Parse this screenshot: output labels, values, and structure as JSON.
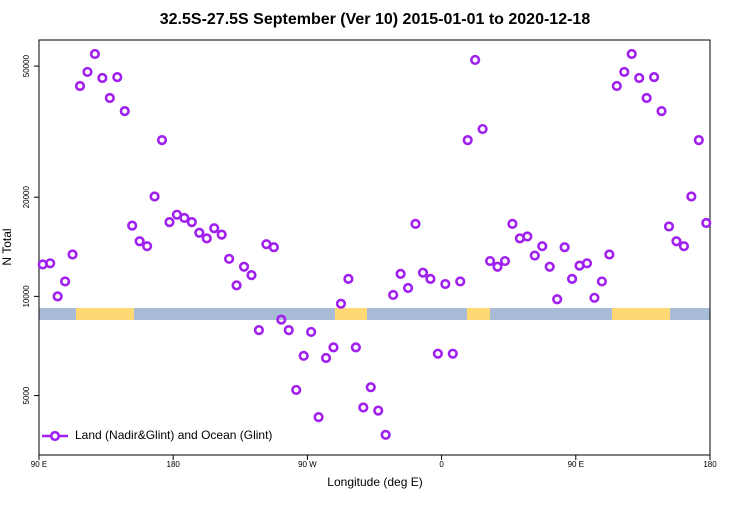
{
  "chart_data": {
    "type": "scatter",
    "title": "32.5S-27.5S September (Ver 10)   2015-01-01 to 2020-12-18",
    "x_label": "Longitude (deg E)",
    "y_label": "N Total",
    "y_log": true,
    "legend": "bottom-left",
    "xlim": [
      90,
      540
    ],
    "ylim": [
      3300,
      60000
    ],
    "xticks": [
      {
        "value": 90,
        "label": "90 E"
      },
      180,
      {
        "value": 270,
        "label": "90 W"
      },
      {
        "value": 360,
        "label": "0"
      },
      {
        "value": 450,
        "label": "90 E"
      },
      {
        "value": 540,
        "label": "180"
      }
    ],
    "yticks": [
      5000,
      10000,
      20000,
      50000
    ],
    "series": [
      {
        "name": "Land (Nadir&Glint) and Ocean (Glint)",
        "color": "#a020f0",
        "x": [
          92.5,
          97.5,
          102.5,
          107.5,
          112.5,
          117.5,
          122.5,
          127.5,
          132.5,
          137.5,
          142.5,
          147.5,
          152.5,
          157.5,
          162.5,
          167.5,
          172.5,
          177.5,
          182.5,
          187.5,
          192.5,
          197.5,
          202.5,
          207.5,
          212.5,
          217.5,
          222.5,
          227.5,
          232.5,
          237.5,
          242.5,
          247.5,
          252.5,
          257.5,
          262.5,
          267.5,
          272.5,
          277.5,
          282.5,
          287.5,
          292.5,
          297.5,
          302.5,
          307.5,
          312.5,
          317.5,
          322.5,
          327.5,
          332.5,
          337.5,
          342.5,
          347.5,
          352.5,
          357.5,
          362.5,
          367.5,
          372.5,
          377.5,
          382.5,
          387.5,
          392.5,
          397.5,
          402.5,
          407.5,
          412.5,
          417.5,
          422.5,
          427.5,
          432.5,
          437.5,
          442.5,
          447.5,
          452.5,
          457.5,
          462.5,
          467.5,
          472.5,
          477.5,
          482.5,
          487.5,
          492.5,
          497.5,
          502.5,
          507.5,
          512.5,
          517.5,
          522.5,
          527.5,
          532.5,
          537.5
        ],
        "values": [
          12500,
          12600,
          10000,
          11100,
          13400,
          43500,
          48000,
          54400,
          46000,
          40000,
          46300,
          36500,
          16400,
          14700,
          14200,
          20100,
          29800,
          16800,
          17700,
          17300,
          16800,
          15600,
          15000,
          16100,
          15400,
          13000,
          10800,
          12300,
          11600,
          7900,
          14400,
          14100,
          8500,
          7900,
          5200,
          6600,
          7800,
          4300,
          6500,
          7000,
          9500,
          11300,
          7000,
          4600,
          5300,
          4500,
          3800,
          10100,
          11700,
          10600,
          16600,
          11800,
          11300,
          6700,
          10900,
          6700,
          11100,
          29800,
          52200,
          32200,
          12800,
          12300,
          12800,
          16600,
          15000,
          15200,
          13300,
          14200,
          12300,
          9800,
          14100,
          11300,
          12400,
          12600,
          9900,
          11100,
          13400,
          43500,
          48000,
          54400,
          46000,
          40000,
          46300,
          36500,
          16300,
          14700,
          14200,
          20100,
          29800,
          16700
        ]
      }
    ]
  }
}
